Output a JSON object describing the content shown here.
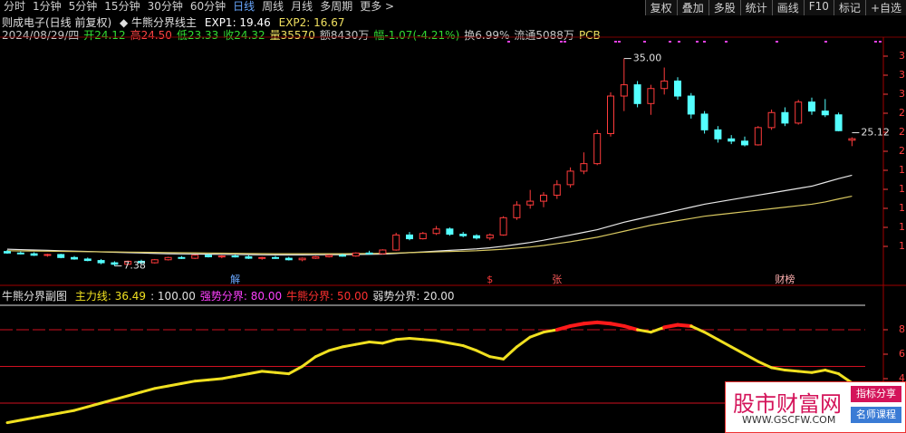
{
  "toolbar": {
    "periods": [
      "分时",
      "1分钟",
      "5分钟",
      "15分钟",
      "30分钟",
      "60分钟",
      "日线",
      "周线",
      "月线",
      "多周期",
      "更多 >"
    ],
    "active": 6,
    "tools": [
      "复权",
      "叠加",
      "多股",
      "统计",
      "画线",
      "F10",
      "标记",
      "+自选"
    ]
  },
  "header": {
    "stock": "则成电子(日线 前复权)",
    "indicator": "◆ 牛熊分界线主",
    "exp1": {
      "text": "EXP1: 19.46",
      "color": "#ffffff"
    },
    "exp2": {
      "text": "EXP2: 16.67",
      "color": "#f0e060"
    },
    "quote": [
      {
        "text": "2024/08/29/四",
        "color": "#c8c8c8"
      },
      {
        "text": "开24.12",
        "color": "#33dd33"
      },
      {
        "text": "高24.50",
        "color": "#ff4444"
      },
      {
        "text": "低23.33",
        "color": "#33dd33"
      },
      {
        "text": "收24.32",
        "color": "#33dd33"
      },
      {
        "text": "量35570",
        "color": "#f0e060"
      },
      {
        "text": "额8430万",
        "color": "#c8c8c8"
      },
      {
        "text": "幅-1.07(-4.21%)",
        "color": "#33dd33"
      },
      {
        "text": "换6.99%",
        "color": "#c8c8c8"
      },
      {
        "text": "流通5088万",
        "color": "#c8c8c8"
      },
      {
        "text": "PCB",
        "color": "#f0e060"
      }
    ]
  },
  "chart_data": [
    {
      "type": "candlestick",
      "ylim": [
        6,
        37
      ],
      "up_color": "#ff3b3b",
      "down_color": "#54ffff",
      "candles": [
        [
          9.3,
          9.5,
          9.0,
          9.1
        ],
        [
          9.1,
          9.3,
          8.9,
          9.0
        ],
        [
          9.0,
          9.2,
          8.7,
          8.8
        ],
        [
          8.8,
          9.0,
          8.6,
          8.9
        ],
        [
          8.9,
          9.0,
          8.4,
          8.5
        ],
        [
          8.5,
          8.7,
          8.2,
          8.3
        ],
        [
          8.3,
          8.5,
          8.0,
          8.1
        ],
        [
          8.1,
          8.3,
          7.6,
          7.8
        ],
        [
          7.8,
          8.0,
          7.38,
          7.6
        ],
        [
          7.6,
          8.1,
          7.5,
          8.0
        ],
        [
          8.0,
          8.2,
          7.7,
          7.8
        ],
        [
          7.8,
          8.3,
          7.7,
          8.2
        ],
        [
          8.2,
          8.6,
          8.1,
          8.5
        ],
        [
          8.5,
          8.7,
          8.3,
          8.4
        ],
        [
          8.4,
          8.9,
          8.3,
          8.8
        ],
        [
          8.8,
          9.0,
          8.5,
          8.6
        ],
        [
          8.6,
          8.8,
          8.4,
          8.7
        ],
        [
          8.7,
          8.9,
          8.5,
          8.6
        ],
        [
          8.6,
          8.8,
          8.3,
          8.4
        ],
        [
          8.4,
          8.6,
          8.2,
          8.5
        ],
        [
          8.5,
          8.7,
          8.3,
          8.4
        ],
        [
          8.4,
          8.6,
          8.1,
          8.2
        ],
        [
          8.2,
          8.5,
          8.0,
          8.4
        ],
        [
          8.4,
          8.7,
          8.3,
          8.6
        ],
        [
          8.6,
          8.9,
          8.5,
          8.8
        ],
        [
          8.8,
          9.0,
          8.6,
          8.7
        ],
        [
          8.7,
          9.2,
          8.6,
          9.1
        ],
        [
          9.1,
          9.4,
          8.9,
          9.0
        ],
        [
          9.0,
          9.6,
          8.9,
          9.5
        ],
        [
          9.5,
          11.8,
          9.4,
          11.5
        ],
        [
          11.5,
          11.9,
          10.8,
          11.0
        ],
        [
          11.0,
          11.9,
          10.9,
          11.7
        ],
        [
          11.7,
          12.7,
          11.5,
          12.3
        ],
        [
          12.3,
          12.5,
          11.4,
          11.6
        ],
        [
          11.6,
          11.9,
          11.2,
          11.4
        ],
        [
          11.4,
          11.6,
          10.9,
          11.1
        ],
        [
          11.1,
          11.7,
          10.8,
          11.5
        ],
        [
          11.5,
          14.0,
          11.4,
          13.8
        ],
        [
          13.8,
          16.0,
          13.5,
          15.5
        ],
        [
          15.5,
          17.5,
          15.0,
          16.0
        ],
        [
          16.0,
          17.2,
          15.2,
          16.8
        ],
        [
          16.8,
          18.8,
          16.3,
          18.2
        ],
        [
          18.2,
          20.5,
          17.8,
          20.0
        ],
        [
          20.0,
          22.5,
          19.6,
          21.0
        ],
        [
          21.0,
          25.5,
          20.8,
          25.0
        ],
        [
          25.0,
          30.5,
          24.6,
          30.0
        ],
        [
          30.0,
          35.0,
          28.0,
          31.5
        ],
        [
          31.5,
          32.0,
          28.5,
          29.0
        ],
        [
          29.0,
          31.5,
          27.5,
          31.0
        ],
        [
          31.0,
          33.8,
          30.2,
          32.0
        ],
        [
          32.0,
          32.5,
          29.5,
          30.0
        ],
        [
          30.0,
          30.4,
          27.0,
          27.6
        ],
        [
          27.6,
          28.0,
          25.0,
          25.5
        ],
        [
          25.5,
          26.0,
          23.8,
          24.3
        ],
        [
          24.3,
          24.8,
          23.6,
          24.0
        ],
        [
          24.0,
          24.6,
          23.3,
          23.5
        ],
        [
          23.5,
          26.0,
          23.4,
          25.8
        ],
        [
          25.8,
          28.2,
          25.5,
          27.8
        ],
        [
          27.8,
          28.5,
          26.0,
          26.4
        ],
        [
          26.4,
          29.5,
          26.2,
          29.2
        ],
        [
          29.2,
          29.8,
          27.5,
          28.0
        ],
        [
          28.0,
          29.6,
          27.2,
          27.5
        ],
        [
          27.5,
          27.8,
          25.3,
          25.39
        ],
        [
          24.12,
          24.5,
          23.33,
          24.32
        ]
      ],
      "series": [
        {
          "name": "EXP1",
          "color": "#e8e8e8",
          "values": [
            9.6,
            9.55,
            9.5,
            9.45,
            9.4,
            9.35,
            9.3,
            9.25,
            9.2,
            9.15,
            9.1,
            9.05,
            9.0,
            8.98,
            8.96,
            8.94,
            8.92,
            8.9,
            8.88,
            8.86,
            8.85,
            8.85,
            8.85,
            8.86,
            8.87,
            8.88,
            8.9,
            8.92,
            8.95,
            9.05,
            9.15,
            9.25,
            9.35,
            9.45,
            9.55,
            9.65,
            9.8,
            10.0,
            10.25,
            10.5,
            10.8,
            11.15,
            11.5,
            11.85,
            12.2,
            12.7,
            13.2,
            13.6,
            14.0,
            14.4,
            14.8,
            15.2,
            15.6,
            15.9,
            16.2,
            16.5,
            16.8,
            17.1,
            17.4,
            17.7,
            18.0,
            18.5,
            19.0,
            19.46
          ]
        },
        {
          "name": "EXP2",
          "color": "#d8c860",
          "values": [
            9.4,
            9.38,
            9.36,
            9.34,
            9.32,
            9.3,
            9.28,
            9.26,
            9.24,
            9.22,
            9.2,
            9.18,
            9.16,
            9.14,
            9.12,
            9.1,
            9.08,
            9.06,
            9.04,
            9.02,
            9.0,
            9.0,
            9.0,
            9.0,
            9.0,
            9.0,
            9.02,
            9.04,
            9.06,
            9.1,
            9.15,
            9.2,
            9.25,
            9.3,
            9.35,
            9.4,
            9.5,
            9.6,
            9.75,
            9.9,
            10.1,
            10.35,
            10.6,
            10.9,
            11.2,
            11.6,
            12.0,
            12.4,
            12.8,
            13.1,
            13.4,
            13.7,
            14.0,
            14.2,
            14.4,
            14.6,
            14.8,
            15.0,
            15.2,
            15.4,
            15.6,
            15.9,
            16.3,
            16.67
          ]
        }
      ],
      "annotations": [
        {
          "text": "35.00",
          "index": 46,
          "at": 35.0,
          "color": "#e0e0e0"
        },
        {
          "text": "25.12",
          "index": 63,
          "at": 25.12,
          "color": "#e0e0e0"
        },
        {
          "text": "7.38",
          "index": 8,
          "at": 7.38,
          "color": "#e0e0e0"
        }
      ],
      "events": [
        {
          "text": "解",
          "index": 17,
          "color": "#6aa8ff"
        },
        {
          "text": "$",
          "index": 36,
          "color": "#ff3b3b"
        },
        {
          "text": "张",
          "index": 41,
          "color": "#ff5b5b"
        },
        {
          "text": "财榜",
          "index": 58,
          "color": "#ffb0b0"
        }
      ],
      "axis_labels": [
        "3",
        "3",
        "3",
        "2",
        "2",
        "2",
        "1",
        "1",
        "1",
        "1",
        "1"
      ]
    },
    {
      "type": "line",
      "title": "牛熊分界副图",
      "legend": [
        {
          "text": "主力线: 36.49",
          "color": "#f0e020"
        },
        {
          "text": ": 100.00",
          "color": "#e0e0e0"
        },
        {
          "text": "强势分界: 80.00",
          "color": "#ff40ff"
        },
        {
          "text": "牛熊分界: 50.00",
          "color": "#ff3030"
        },
        {
          "text": "弱势分界: 20.00",
          "color": "#e0e0e0"
        }
      ],
      "ylim": [
        0,
        100
      ],
      "levels": [
        100,
        80,
        50,
        20
      ],
      "yticks": [
        {
          "value": 80,
          "label": "8"
        },
        {
          "value": 60,
          "label": "6"
        },
        {
          "value": 40,
          "label": "4"
        }
      ],
      "color": "#f0e020",
      "strong_color": "#ff1a1a",
      "strong_from": 80,
      "values": [
        4,
        6,
        8,
        10,
        12,
        14,
        17,
        20,
        23,
        26,
        29,
        32,
        34,
        36,
        38,
        39,
        40,
        42,
        44,
        46,
        45,
        44,
        50,
        58,
        63,
        66,
        68,
        70,
        69,
        72,
        73,
        72,
        71,
        69,
        67,
        63,
        58,
        56,
        66,
        74,
        78,
        80,
        83,
        85,
        86,
        85,
        83,
        80,
        78,
        82,
        84,
        83,
        78,
        72,
        66,
        60,
        54,
        49,
        47,
        46,
        45,
        47,
        44,
        36.49
      ]
    }
  ],
  "watermark": {
    "name": "股市财富网",
    "url": "WWW.GSCFW.COM",
    "tags": [
      "指标分享",
      "名师课程"
    ]
  }
}
